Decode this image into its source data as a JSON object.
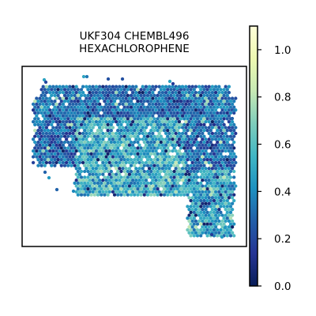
{
  "chart_data": {
    "type": "heatmap",
    "title_lines": [
      "UKF304 CHEMBL496",
      "HEXACHLOROPHENE"
    ],
    "colormap": "YlGnBu",
    "colorbar": {
      "range": [
        0.0,
        1.1
      ],
      "ticks": [
        {
          "value": 0.0,
          "label": "0.0"
        },
        {
          "value": 0.2,
          "label": "0.2"
        },
        {
          "value": 0.4,
          "label": "0.4"
        },
        {
          "value": 0.6,
          "label": "0.6"
        },
        {
          "value": 0.8,
          "label": "0.8"
        },
        {
          "value": 1.0,
          "label": "1.0"
        }
      ],
      "stops": [
        "#081d58",
        "#253494",
        "#225ea8",
        "#1d91c0",
        "#41b6c4",
        "#7fcdbb",
        "#c7e9b4",
        "#edf8b1",
        "#ffffd9"
      ]
    },
    "axes_visible": false,
    "grid": false,
    "tissue_regions": [
      {
        "region": "upper band",
        "value_range": [
          0.05,
          0.45
        ]
      },
      {
        "region": "central lobe",
        "value_range": [
          0.3,
          0.75
        ]
      },
      {
        "region": "right lower arm",
        "value_range": [
          0.3,
          0.7
        ]
      }
    ]
  }
}
